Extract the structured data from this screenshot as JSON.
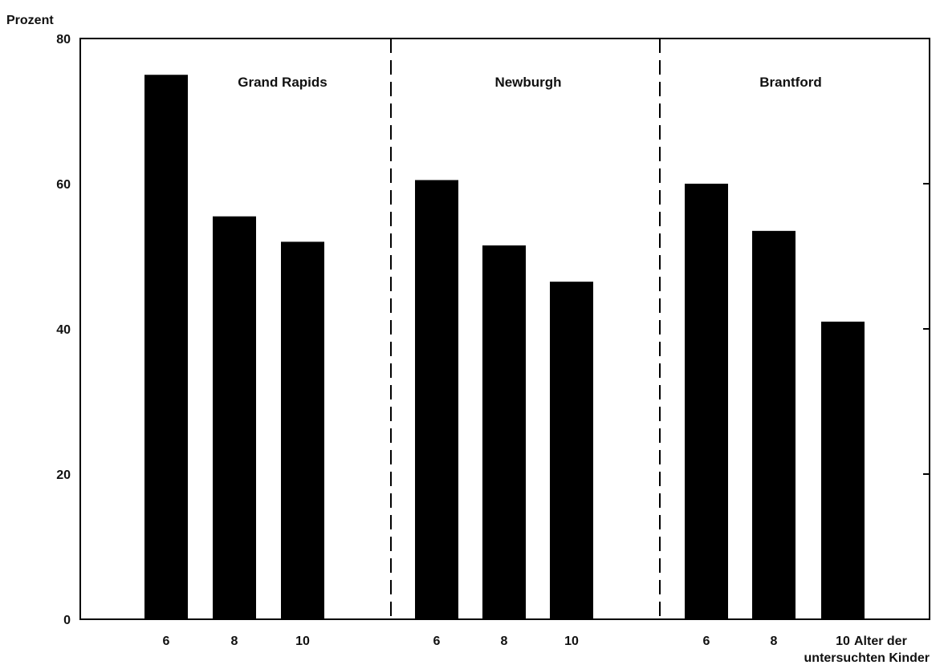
{
  "chart_data": {
    "type": "bar",
    "ylabel": "Prozent",
    "xlabel_line1": "Alter der",
    "xlabel_line2": "untersuchten Kinder",
    "ylim": [
      0,
      80
    ],
    "yticks": [
      "0",
      "20",
      "40",
      "60",
      "80"
    ],
    "categories": [
      "6",
      "8",
      "10"
    ],
    "panels": [
      {
        "title": "Grand Rapids",
        "values": [
          75,
          55.5,
          52
        ]
      },
      {
        "title": "Newburgh",
        "values": [
          60.5,
          51.5,
          46.5
        ]
      },
      {
        "title": "Brantford",
        "values": [
          60,
          53.5,
          41
        ]
      }
    ],
    "grid": false,
    "bar_color": "#000000"
  }
}
